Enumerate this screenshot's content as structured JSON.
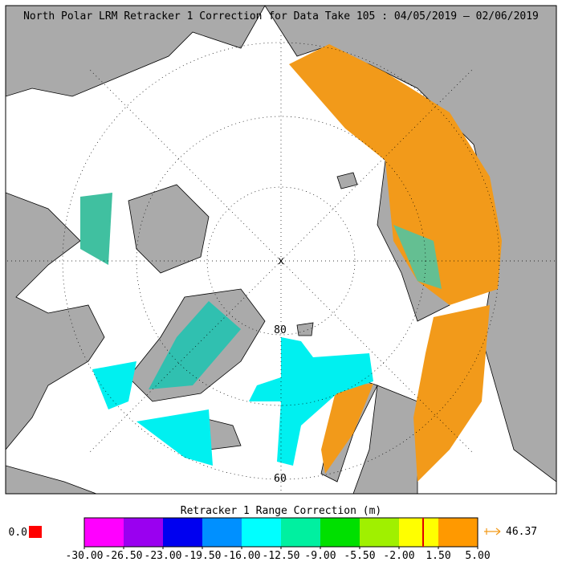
{
  "header": {
    "title": "North Polar LRM Retracker 1 Correction for Data Take 105 : 04/05/2019 – 02/06/2019"
  },
  "map": {
    "labels": [
      "80",
      "60"
    ]
  },
  "colorbar": {
    "title": "Retracker 1 Range Correction (m)",
    "colors": [
      "#ff00ff",
      "#9a00f0",
      "#0000f0",
      "#0090ff",
      "#00ffff",
      "#00f0a0",
      "#00e000",
      "#a0f000",
      "#ffff00",
      "#ff9900"
    ],
    "ticks": [
      "-30.00",
      "-26.50",
      "-23.00",
      "-19.50",
      "-16.00",
      "-12.50",
      "-9.00",
      "-5.50",
      "-2.00",
      "1.50",
      "5.00"
    ],
    "below": "0.0",
    "above": "46.37"
  }
}
